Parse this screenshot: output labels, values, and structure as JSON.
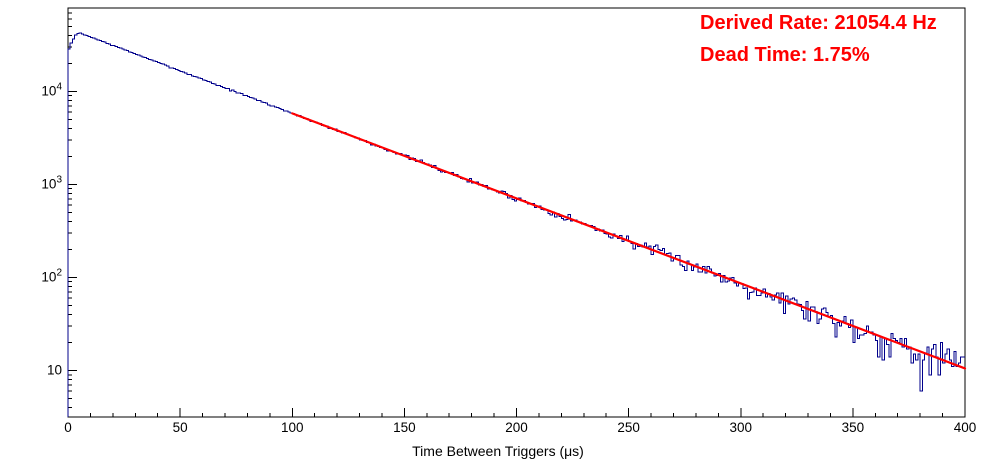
{
  "annotations": {
    "derived_rate": "Derived Rate: 21054.4 Hz",
    "dead_time": "Dead Time: 1.75%",
    "color": "#ff0000"
  },
  "axes": {
    "x": {
      "label": "Time Between Triggers (μs)",
      "min": 0,
      "max": 400,
      "major_ticks": [
        0,
        50,
        100,
        150,
        200,
        250,
        300,
        350,
        400
      ],
      "minor_step": 10
    },
    "y": {
      "scale": "log",
      "min": 3.162,
      "max": 79000,
      "major_ticks": [
        {
          "value": 10,
          "base": "10",
          "exp": ""
        },
        {
          "value": 100,
          "base": "10",
          "exp": "2"
        },
        {
          "value": 1000,
          "base": "10",
          "exp": "3"
        },
        {
          "value": 10000,
          "base": "10",
          "exp": "4"
        }
      ]
    }
  },
  "chart_data": {
    "type": "line",
    "subtype": "histogram-step-with-exponential-fit",
    "title": "",
    "x_label": "Time Between Triggers (μs)",
    "y_label": "",
    "xlim": [
      0,
      400
    ],
    "ylim_log": [
      3.162,
      79000
    ],
    "grid": false,
    "legend": "none",
    "bin_width_us": 1,
    "hist_color": "#00008b",
    "points_t_vs_counts": [
      [
        0,
        26000
      ],
      [
        2,
        36000
      ],
      [
        5,
        43000
      ],
      [
        10,
        38700
      ],
      [
        20,
        31400
      ],
      [
        30,
        25400
      ],
      [
        40,
        20600
      ],
      [
        50,
        16700
      ],
      [
        60,
        13500
      ],
      [
        70,
        10900
      ],
      [
        80,
        8860
      ],
      [
        90,
        7180
      ],
      [
        100,
        5810
      ],
      [
        120,
        3810
      ],
      [
        140,
        2500
      ],
      [
        160,
        1640
      ],
      [
        180,
        1080
      ],
      [
        200,
        706
      ],
      [
        220,
        463
      ],
      [
        240,
        304
      ],
      [
        260,
        199
      ],
      [
        280,
        131
      ],
      [
        300,
        86
      ],
      [
        320,
        56
      ],
      [
        340,
        37
      ],
      [
        360,
        24
      ],
      [
        380,
        16
      ],
      [
        400,
        10
      ]
    ],
    "rise_points_t_vs_counts": [
      [
        0,
        26000
      ],
      [
        1,
        31000
      ],
      [
        2,
        35500
      ],
      [
        3,
        38800
      ],
      [
        4,
        41200
      ],
      [
        5,
        43000
      ]
    ],
    "model": {
      "A": 47770,
      "tau_us": 47.5
    },
    "noise": "poisson",
    "seed": 7,
    "fit": {
      "type": "exponential",
      "A": 47770,
      "tau_us": 47.5,
      "range_us": [
        100,
        400
      ],
      "color": "#ff0000",
      "derived_rate_hz": 21054.4,
      "dead_time_pct": 1.75
    }
  }
}
